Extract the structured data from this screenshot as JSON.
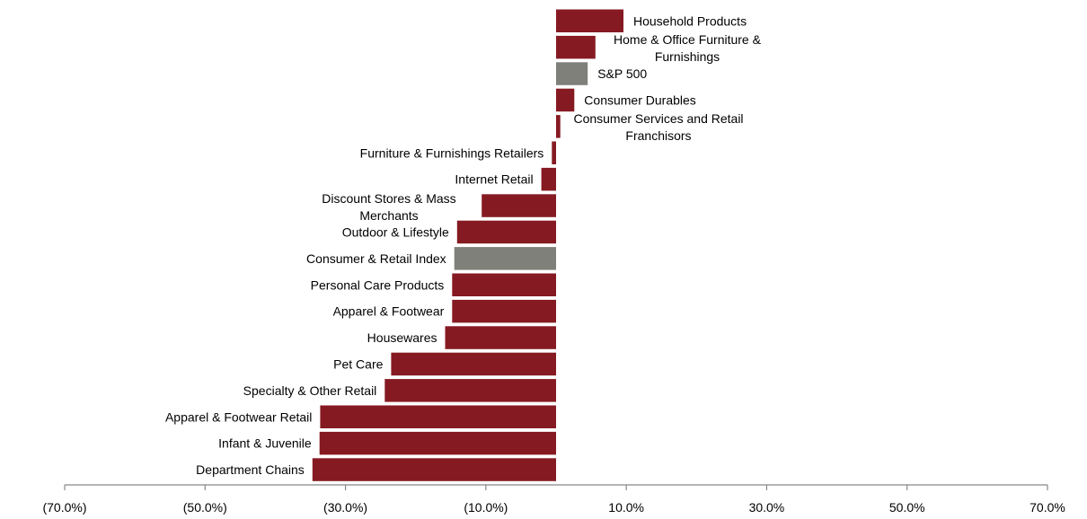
{
  "chart_data": {
    "type": "bar",
    "orientation": "horizontal",
    "title": "",
    "xlabel": "",
    "ylabel": "",
    "xlim": [
      -70,
      70
    ],
    "xticks": [
      -70,
      -50,
      -30,
      -10,
      10,
      30,
      50,
      70
    ],
    "xtick_labels": [
      "(70.0%)",
      "(50.0%)",
      "(30.0%)",
      "(10.0%)",
      "10.0%",
      "30.0%",
      "50.0%",
      "70.0%"
    ],
    "grid": false,
    "legend": "none",
    "colors": {
      "sector": "#861a22",
      "benchmark": "#80807a",
      "axis": "#888888"
    },
    "bars": [
      {
        "label": "Household Products",
        "value": 9.6,
        "kind": "sector"
      },
      {
        "label": "Home & Office Furniture & Furnishings",
        "value": 5.6,
        "kind": "sector"
      },
      {
        "label": "S&P 500",
        "value": 4.5,
        "kind": "benchmark"
      },
      {
        "label": "Consumer Durables",
        "value": 2.6,
        "kind": "sector"
      },
      {
        "label": "Consumer Services and Retail Franchisors",
        "value": 0.6,
        "kind": "sector"
      },
      {
        "label": "Furniture & Furnishings Retailers",
        "value": -0.6,
        "kind": "sector"
      },
      {
        "label": "Internet Retail",
        "value": -2.1,
        "kind": "sector"
      },
      {
        "label": "Discount Stores & Mass Merchants",
        "value": -10.6,
        "kind": "sector"
      },
      {
        "label": "Outdoor & Lifestyle",
        "value": -14.1,
        "kind": "sector"
      },
      {
        "label": "Consumer & Retail Index",
        "value": -14.5,
        "kind": "benchmark"
      },
      {
        "label": "Personal Care Products",
        "value": -14.8,
        "kind": "sector"
      },
      {
        "label": "Apparel & Footwear",
        "value": -14.8,
        "kind": "sector"
      },
      {
        "label": "Housewares",
        "value": -15.8,
        "kind": "sector"
      },
      {
        "label": "Pet Care",
        "value": -23.5,
        "kind": "sector"
      },
      {
        "label": "Specialty & Other Retail",
        "value": -24.4,
        "kind": "sector"
      },
      {
        "label": "Apparel & Footwear Retail",
        "value": -33.6,
        "kind": "sector"
      },
      {
        "label": "Infant & Juvenile",
        "value": -33.7,
        "kind": "sector"
      },
      {
        "label": "Department Chains",
        "value": -34.7,
        "kind": "sector"
      }
    ]
  }
}
